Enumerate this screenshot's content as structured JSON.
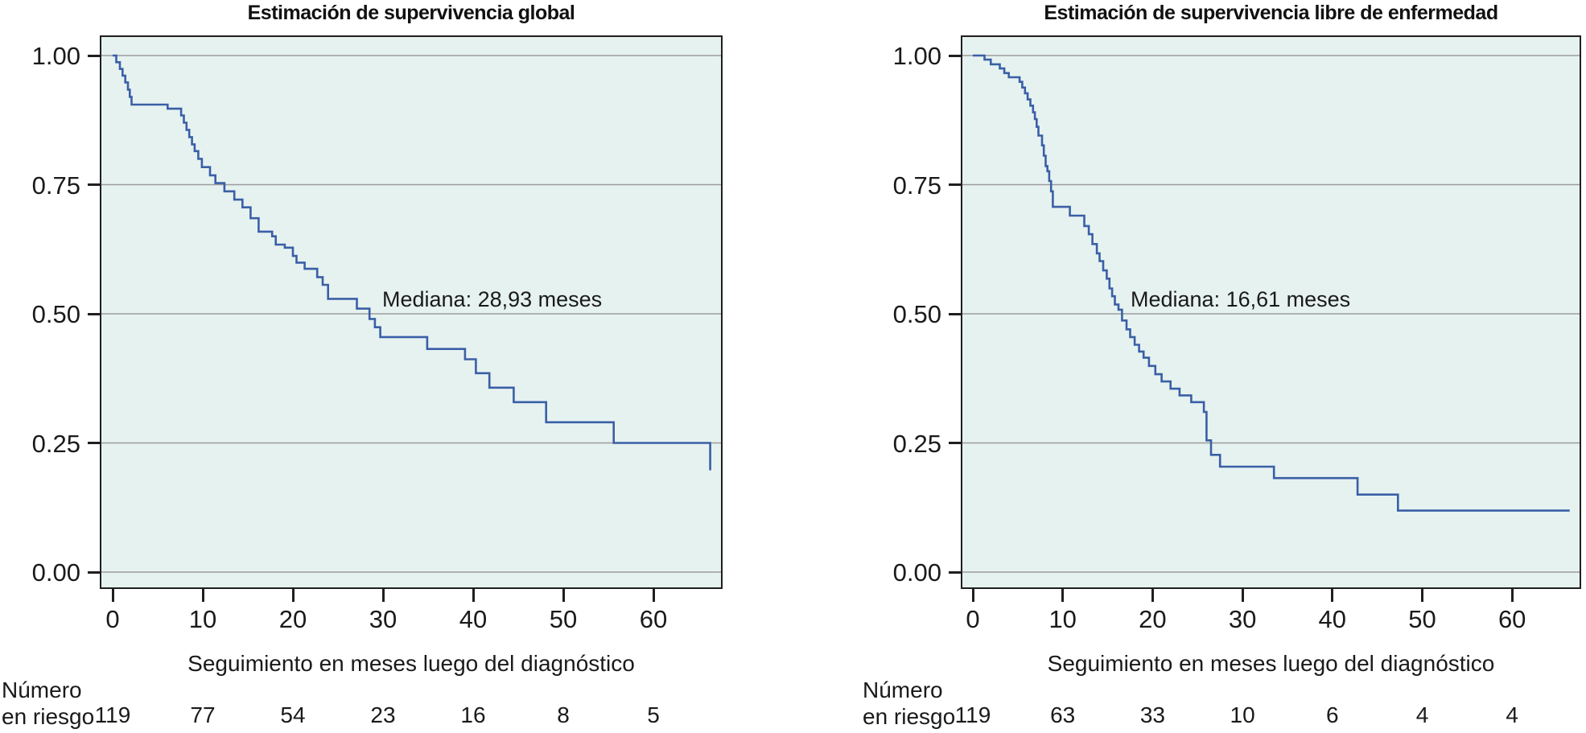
{
  "figure": {
    "plot_background": "#e6f2f0",
    "grid_color": "#9c9c9c",
    "curve_color": "#3a5fa6",
    "border_color": "#1f1f1f",
    "text_color": "#1a1a1a"
  },
  "chart_data": [
    {
      "type": "line",
      "style": "kaplan-meier-step",
      "title": "Estimación de supervivencia global",
      "xlabel": "Seguimiento en meses luego del diagnóstico",
      "ylabel": "",
      "xlim": [
        0,
        67.7
      ],
      "ylim": [
        0,
        1
      ],
      "x_ticks": [
        0,
        10,
        20,
        30,
        40,
        50,
        60
      ],
      "x_tick_labels": [
        "0",
        "10",
        "20",
        "30",
        "40",
        "50",
        "60"
      ],
      "y_ticks": [
        1.0,
        0.75,
        0.5,
        0.25,
        0.0
      ],
      "y_tick_labels": [
        "1.00",
        "0.75",
        "0.50",
        "0.25",
        "0.00"
      ],
      "grid": true,
      "legend": "none",
      "annotation": "Mediana: 28,93 meses",
      "median_months": 28.93,
      "risk_row_label_line1": "Número",
      "risk_row_label_line2": "en riesgo",
      "number_at_risk": {
        "times": [
          0,
          10,
          20,
          30,
          40,
          50,
          60
        ],
        "counts": [
          "119",
          "77",
          "54",
          "23",
          "16",
          "8",
          "5"
        ]
      },
      "series": [
        {
          "name": "Supervivencia global",
          "points": [
            [
              0,
              1.0
            ],
            [
              0.4,
              0.987
            ],
            [
              0.8,
              0.974
            ],
            [
              1.1,
              0.961
            ],
            [
              1.4,
              0.948
            ],
            [
              1.7,
              0.934
            ],
            [
              1.9,
              0.92
            ],
            [
              2.1,
              0.905
            ],
            [
              6.1,
              0.897
            ],
            [
              7.6,
              0.884
            ],
            [
              7.9,
              0.87
            ],
            [
              8.2,
              0.856
            ],
            [
              8.5,
              0.842
            ],
            [
              8.8,
              0.828
            ],
            [
              9.1,
              0.815
            ],
            [
              9.5,
              0.8
            ],
            [
              9.9,
              0.784
            ],
            [
              10.8,
              0.768
            ],
            [
              11.4,
              0.753
            ],
            [
              12.4,
              0.737
            ],
            [
              13.5,
              0.721
            ],
            [
              14.4,
              0.706
            ],
            [
              15.3,
              0.685
            ],
            [
              16.2,
              0.659
            ],
            [
              17.7,
              0.65
            ],
            [
              18.1,
              0.634
            ],
            [
              19.1,
              0.628
            ],
            [
              20.0,
              0.612
            ],
            [
              20.4,
              0.599
            ],
            [
              21.3,
              0.587
            ],
            [
              22.7,
              0.571
            ],
            [
              23.3,
              0.556
            ],
            [
              23.9,
              0.529
            ],
            [
              27.1,
              0.51
            ],
            [
              28.5,
              0.49
            ],
            [
              29.1,
              0.474
            ],
            [
              29.7,
              0.455
            ],
            [
              34.9,
              0.432
            ],
            [
              39.1,
              0.412
            ],
            [
              40.3,
              0.385
            ],
            [
              41.8,
              0.357
            ],
            [
              44.5,
              0.329
            ],
            [
              48.1,
              0.29
            ],
            [
              55.6,
              0.25
            ],
            [
              66.3,
              0.197
            ]
          ]
        }
      ]
    },
    {
      "type": "line",
      "style": "kaplan-meier-step",
      "title": "Estimación de supervivencia libre de enfermedad",
      "xlabel": "Seguimiento en meses luego del diagnóstico",
      "ylabel": "",
      "xlim": [
        0,
        67.7
      ],
      "ylim": [
        0,
        1
      ],
      "x_ticks": [
        0,
        10,
        20,
        30,
        40,
        50,
        60
      ],
      "x_tick_labels": [
        "0",
        "10",
        "20",
        "30",
        "40",
        "50",
        "60"
      ],
      "y_ticks": [
        1.0,
        0.75,
        0.5,
        0.25,
        0.0
      ],
      "y_tick_labels": [
        "1.00",
        "0.75",
        "0.50",
        "0.25",
        "0.00"
      ],
      "grid": true,
      "legend": "none",
      "annotation": "Mediana: 16,61 meses",
      "median_months": 16.61,
      "risk_row_label_line1": "Número",
      "risk_row_label_line2": "en riesgo",
      "number_at_risk": {
        "times": [
          0,
          10,
          20,
          30,
          40,
          50,
          60
        ],
        "counts": [
          "119",
          "63",
          "33",
          "10",
          "6",
          "4",
          "4"
        ]
      },
      "series": [
        {
          "name": "Supervivencia libre de enfermedad",
          "points": [
            [
              0,
              1.0
            ],
            [
              1.3,
              0.992
            ],
            [
              2.0,
              0.983
            ],
            [
              3.0,
              0.975
            ],
            [
              3.5,
              0.966
            ],
            [
              4.0,
              0.958
            ],
            [
              5.2,
              0.949
            ],
            [
              5.5,
              0.938
            ],
            [
              5.8,
              0.927
            ],
            [
              6.1,
              0.915
            ],
            [
              6.4,
              0.903
            ],
            [
              6.7,
              0.89
            ],
            [
              6.9,
              0.877
            ],
            [
              7.1,
              0.862
            ],
            [
              7.3,
              0.845
            ],
            [
              7.7,
              0.826
            ],
            [
              7.9,
              0.806
            ],
            [
              8.1,
              0.786
            ],
            [
              8.3,
              0.776
            ],
            [
              8.5,
              0.757
            ],
            [
              8.7,
              0.737
            ],
            [
              8.9,
              0.707
            ],
            [
              10.8,
              0.69
            ],
            [
              12.4,
              0.67
            ],
            [
              12.9,
              0.654
            ],
            [
              13.3,
              0.635
            ],
            [
              13.8,
              0.617
            ],
            [
              14.1,
              0.602
            ],
            [
              14.5,
              0.584
            ],
            [
              14.9,
              0.568
            ],
            [
              15.2,
              0.549
            ],
            [
              15.5,
              0.534
            ],
            [
              15.8,
              0.518
            ],
            [
              16.2,
              0.508
            ],
            [
              16.6,
              0.487
            ],
            [
              17.1,
              0.47
            ],
            [
              17.5,
              0.455
            ],
            [
              18.0,
              0.44
            ],
            [
              18.5,
              0.427
            ],
            [
              19.0,
              0.415
            ],
            [
              19.6,
              0.399
            ],
            [
              20.3,
              0.383
            ],
            [
              21.0,
              0.369
            ],
            [
              22.0,
              0.355
            ],
            [
              23.0,
              0.342
            ],
            [
              24.3,
              0.329
            ],
            [
              25.7,
              0.31
            ],
            [
              26.0,
              0.255
            ],
            [
              26.5,
              0.227
            ],
            [
              27.5,
              0.204
            ],
            [
              33.5,
              0.182
            ],
            [
              42.8,
              0.15
            ],
            [
              47.3,
              0.119
            ],
            [
              66.4,
              0.119
            ]
          ]
        }
      ]
    }
  ]
}
